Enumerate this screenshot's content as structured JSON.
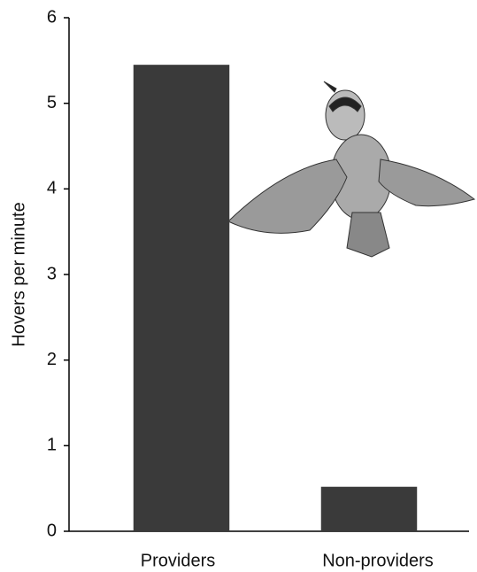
{
  "chart_data": {
    "type": "bar",
    "y_label": "Hovers per minute",
    "categories": [
      "Providers",
      "Non-providers"
    ],
    "values": [
      5.45,
      0.52
    ],
    "color": "#3a3a3a",
    "ylim": [
      0,
      6
    ],
    "yticks": [
      0,
      1,
      2,
      3,
      4,
      5,
      6
    ],
    "grid": false
  }
}
